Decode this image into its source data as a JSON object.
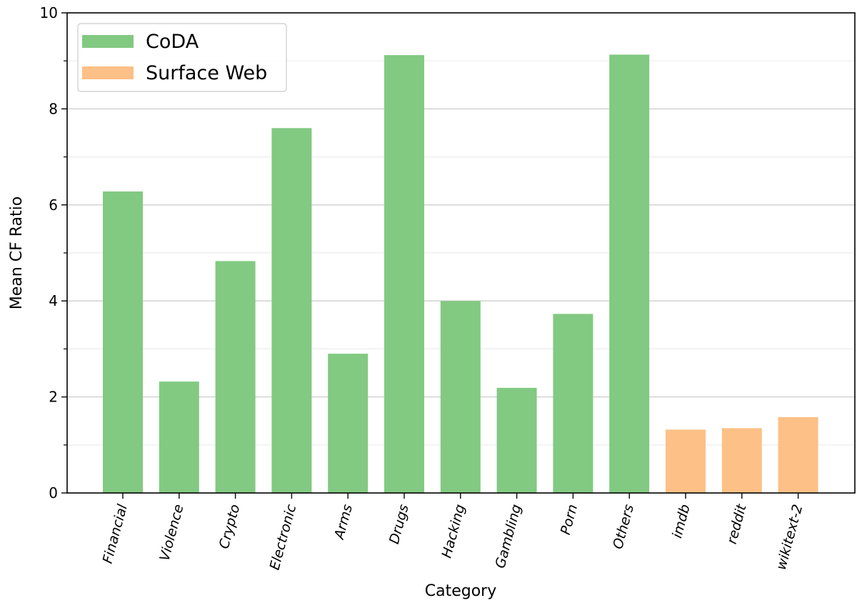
{
  "chart_data": {
    "type": "bar",
    "title": "",
    "xlabel": "Category",
    "ylabel": "Mean CF Ratio",
    "ylim": [
      0,
      10
    ],
    "yticks": [
      0,
      2,
      4,
      6,
      8,
      10
    ],
    "yminor_step": 1,
    "grid": "horizontal",
    "legend_position": "top-left",
    "categories": [
      "Financial",
      "Violence",
      "Crypto",
      "Electronic",
      "Arms",
      "Drugs",
      "Hacking",
      "Gambling",
      "Porn",
      "Others",
      "imdb",
      "reddit",
      "wikitext-2"
    ],
    "series": [
      {
        "name": "CoDA",
        "color": "#82c982",
        "values": [
          6.28,
          2.32,
          4.83,
          7.6,
          2.9,
          9.12,
          4.0,
          2.19,
          3.73,
          9.13,
          null,
          null,
          null
        ]
      },
      {
        "name": "Surface Web",
        "color": "#fdc086",
        "values": [
          null,
          null,
          null,
          null,
          null,
          null,
          null,
          null,
          null,
          null,
          1.32,
          1.35,
          1.58
        ]
      }
    ]
  }
}
